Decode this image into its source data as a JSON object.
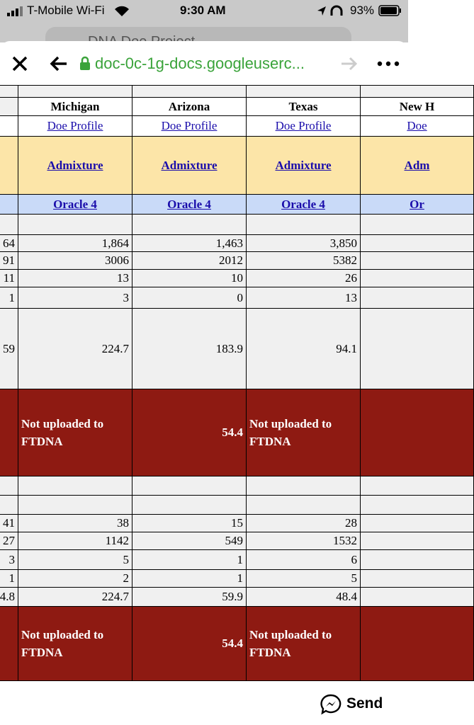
{
  "status_bar": {
    "carrier": "T-Mobile Wi-Fi",
    "time": "9:30 AM",
    "battery": "93%"
  },
  "background_tab": {
    "title": "DNA Doe Project"
  },
  "toolbar": {
    "url": "doc-0c-1g-docs.googleuserc..."
  },
  "table": {
    "rows": [
      [
        null,
        null,
        null,
        null,
        null
      ],
      [
        null,
        "Michigan",
        "Arizona",
        "Texas",
        "New H"
      ],
      [
        null,
        "Doe Profile",
        "Doe Profile",
        "Doe Profile",
        "Doe"
      ],
      [
        null,
        "Admixture",
        "Admixture",
        "Admixture",
        "Adm"
      ],
      [
        null,
        "Oracle 4",
        "Oracle 4",
        "Oracle 4",
        "Or"
      ],
      [
        null,
        null,
        null,
        null,
        null
      ],
      [
        "64",
        "1,864",
        "1,463",
        "3,850",
        null
      ],
      [
        "91",
        "3006",
        "2012",
        "5382",
        null
      ],
      [
        "11",
        "13",
        "10",
        "26",
        null
      ],
      [
        "1",
        "3",
        "0",
        "13",
        null
      ],
      [
        "59",
        "224.7",
        "183.9",
        "94.1",
        null
      ],
      [
        null,
        "Not uploaded to FTDNA",
        "54.4",
        "Not uploaded to FTDNA",
        null
      ],
      [
        null,
        null,
        null,
        null,
        null
      ],
      [
        null,
        null,
        null,
        null,
        null
      ],
      [
        "41",
        "38",
        "15",
        "28",
        null
      ],
      [
        "27",
        "1142",
        "549",
        "1532",
        null
      ],
      [
        "3",
        "5",
        "1",
        "6",
        null
      ],
      [
        "1",
        "2",
        "1",
        "5",
        null
      ],
      [
        "4.8",
        "224.7",
        "59.9",
        "48.4",
        null
      ],
      [
        null,
        "Not uploaded to FTDNA",
        "54.4",
        "Not uploaded to FTDNA",
        null
      ]
    ]
  },
  "bottom_bar": {
    "action": "Send"
  }
}
